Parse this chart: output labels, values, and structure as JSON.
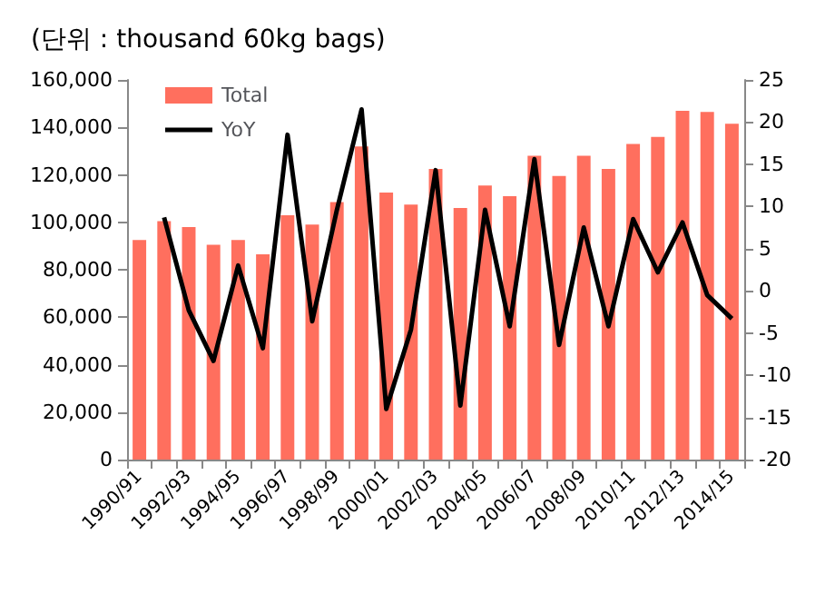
{
  "chart_data": {
    "type": "bar",
    "title": "(단위 : thousand 60kg bags)",
    "categories": [
      "1990/91",
      null,
      "1992/93",
      null,
      "1994/95",
      null,
      "1996/97",
      null,
      "1998/99",
      null,
      "2000/01",
      null,
      "2002/03",
      null,
      "2004/05",
      null,
      "2006/07",
      null,
      "2008/09",
      null,
      "2010/11",
      null,
      "2012/13",
      null,
      "2014/15"
    ],
    "series": [
      {
        "name": "Total",
        "color": "#ff6f5e",
        "values": [
          92500,
          100500,
          98000,
          90500,
          92500,
          86500,
          103000,
          99000,
          108500,
          132000,
          112500,
          107500,
          122500,
          106000,
          115500,
          111000,
          128000,
          119500,
          128000,
          122500,
          133000,
          136000,
          147000,
          146500,
          141500
        ]
      },
      {
        "name": "YoY",
        "type": "line",
        "axis": "y2",
        "color": "#000000",
        "values": [
          null,
          8.7,
          -2.3,
          -8.3,
          3.0,
          -6.8,
          18.5,
          -3.6,
          9.6,
          21.5,
          -14.0,
          -4.6,
          14.3,
          -13.6,
          9.6,
          -4.2,
          15.6,
          -6.4,
          7.5,
          -4.2,
          8.5,
          2.2,
          8.1,
          -0.5,
          -3.3
        ]
      }
    ],
    "ylim": [
      0,
      160000
    ],
    "yticks": [
      0,
      {
        "value": 20000,
        "label": "20,000"
      },
      {
        "value": 40000,
        "label": "40,000"
      },
      {
        "value": 60000,
        "label": "60,000"
      },
      {
        "value": 80000,
        "label": "80,000"
      },
      {
        "value": 100000,
        "label": "100,000"
      },
      {
        "value": 120000,
        "label": "120,000"
      },
      {
        "value": 140000,
        "label": "140,000"
      },
      {
        "value": 160000,
        "label": "160,000"
      }
    ],
    "y2lim": [
      -20,
      25
    ],
    "y2ticks": [
      -20,
      -15,
      -10,
      -5,
      0,
      5,
      10,
      15,
      20,
      25
    ],
    "grid": false,
    "legend": "top left",
    "marker": "none",
    "line_style": "solid"
  }
}
